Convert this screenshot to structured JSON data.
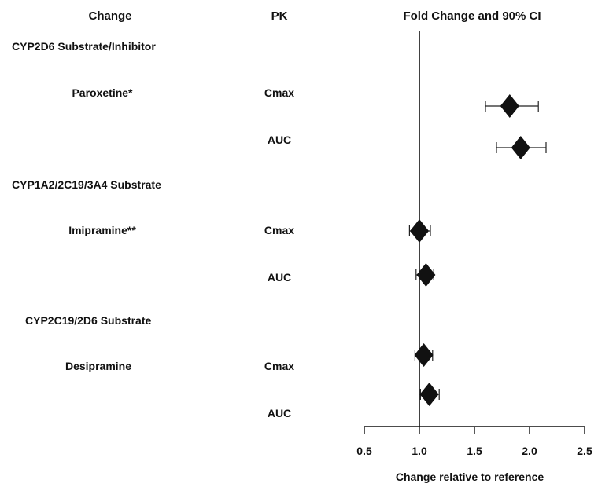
{
  "headers": {
    "change": "Change",
    "pk": "PK",
    "fold": "Fold Change and 90% CI"
  },
  "chart_data": {
    "type": "forest",
    "xlabel": "Change relative to reference",
    "xlim": [
      0.5,
      2.5
    ],
    "xticks": [
      "0.5",
      "1.0",
      "1.5",
      "2.0",
      "2.5"
    ],
    "reference_line": 1.0,
    "groups": [
      {
        "label": "CYP2D6 Substrate/Inhibitor",
        "drug": "Paroxetine*",
        "rows": [
          {
            "pk": "Cmax",
            "estimate": 1.82,
            "lower": 1.6,
            "upper": 2.08
          },
          {
            "pk": "AUC",
            "estimate": 1.92,
            "lower": 1.7,
            "upper": 2.15
          }
        ]
      },
      {
        "label": "CYP1A2/2C19/3A4 Substrate",
        "drug": "Imipramine**",
        "rows": [
          {
            "pk": "Cmax",
            "estimate": 1.0,
            "lower": 0.91,
            "upper": 1.1
          },
          {
            "pk": "AUC",
            "estimate": 1.06,
            "lower": 0.97,
            "upper": 1.13
          }
        ]
      },
      {
        "label": "CYP2C19/2D6 Substrate",
        "drug": "Desipramine",
        "rows": [
          {
            "pk": "Cmax",
            "estimate": 1.04,
            "lower": 0.96,
            "upper": 1.12
          },
          {
            "pk": "AUC",
            "estimate": 1.09,
            "lower": 1.01,
            "upper": 1.18
          }
        ]
      }
    ]
  }
}
